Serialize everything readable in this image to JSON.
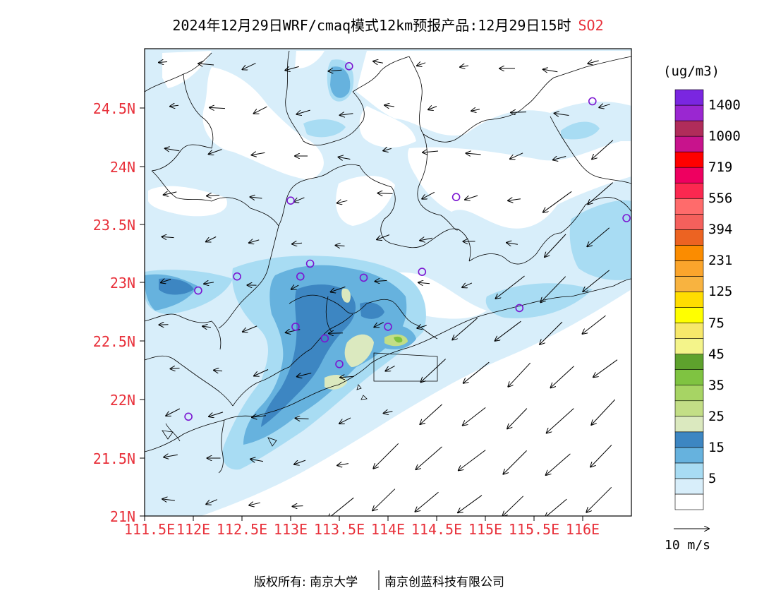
{
  "title": {
    "main": "2024年12月29日WRF/cmaq模式12km预报产品:12月29日15时",
    "pollutant": "SO2"
  },
  "axes": {
    "lat_labels": [
      "24.5N",
      "24N",
      "23.5N",
      "23N",
      "22.5N",
      "22N",
      "21.5N",
      "21N"
    ],
    "lon_labels": [
      "111.5E",
      "112E",
      "112.5E",
      "113E",
      "113.5E",
      "114E",
      "114.5E",
      "115E",
      "115.5E",
      "116E"
    ]
  },
  "legend": {
    "unit": "(ug/m3)",
    "levels": [
      {
        "label": "",
        "color": "#ffffff"
      },
      {
        "label": "5",
        "color": "#d8eefa"
      },
      {
        "label": "",
        "color": "#a8dcf3"
      },
      {
        "label": "15",
        "color": "#66b2de"
      },
      {
        "label": "",
        "color": "#3d86c2"
      },
      {
        "label": "25",
        "color": "#dbe9bf"
      },
      {
        "label": "",
        "color": "#c3de86"
      },
      {
        "label": "35",
        "color": "#a7d464"
      },
      {
        "label": "",
        "color": "#7fc341"
      },
      {
        "label": "45",
        "color": "#5ea22d"
      },
      {
        "label": "",
        "color": "#f4f48a"
      },
      {
        "label": "75",
        "color": "#f7e86a"
      },
      {
        "label": "",
        "color": "#ffff00"
      },
      {
        "label": "125",
        "color": "#ffdd00"
      },
      {
        "label": "",
        "color": "#f8b340"
      },
      {
        "label": "231",
        "color": "#fba52c"
      },
      {
        "label": "",
        "color": "#fb8c00"
      },
      {
        "label": "394",
        "color": "#ec6322"
      },
      {
        "label": "",
        "color": "#f5605c"
      },
      {
        "label": "556",
        "color": "#ff6b6b"
      },
      {
        "label": "",
        "color": "#fb2850"
      },
      {
        "label": "719",
        "color": "#ee0060"
      },
      {
        "label": "",
        "color": "#ff0000"
      },
      {
        "label": "1000",
        "color": "#c8138c"
      },
      {
        "label": "",
        "color": "#b02c5a"
      },
      {
        "label": "1400",
        "color": "#9a27d1"
      },
      {
        "label": "",
        "color": "#7a26e0"
      }
    ]
  },
  "reference_vector": {
    "label": "10 m/s"
  },
  "copyright": {
    "prefix": "版权所有:",
    "org1": "南京大学",
    "org2": "南京创蓝科技有限公司"
  },
  "colors": {
    "axis_label": "#e8303a",
    "station_marker": "#7b16d1",
    "boundary": "#000000"
  },
  "map": {
    "lon_range": [
      111.5,
      116.5
    ],
    "lat_range": [
      21,
      25
    ],
    "wind_flow": "northeasterly",
    "stations": [
      {
        "lon": 113.6,
        "lat": 24.85
      },
      {
        "lon": 116.1,
        "lat": 24.55
      },
      {
        "lon": 113.0,
        "lat": 23.7
      },
      {
        "lon": 114.7,
        "lat": 23.73
      },
      {
        "lon": 116.45,
        "lat": 23.55
      },
      {
        "lon": 112.45,
        "lat": 23.05
      },
      {
        "lon": 113.1,
        "lat": 23.05
      },
      {
        "lon": 113.2,
        "lat": 23.16
      },
      {
        "lon": 113.75,
        "lat": 23.04
      },
      {
        "lon": 114.35,
        "lat": 23.09
      },
      {
        "lon": 112.05,
        "lat": 22.93
      },
      {
        "lon": 115.35,
        "lat": 22.78
      },
      {
        "lon": 113.05,
        "lat": 22.62
      },
      {
        "lon": 113.35,
        "lat": 22.52
      },
      {
        "lon": 114.0,
        "lat": 22.62
      },
      {
        "lon": 113.5,
        "lat": 22.3
      },
      {
        "lon": 111.95,
        "lat": 21.85
      }
    ]
  }
}
